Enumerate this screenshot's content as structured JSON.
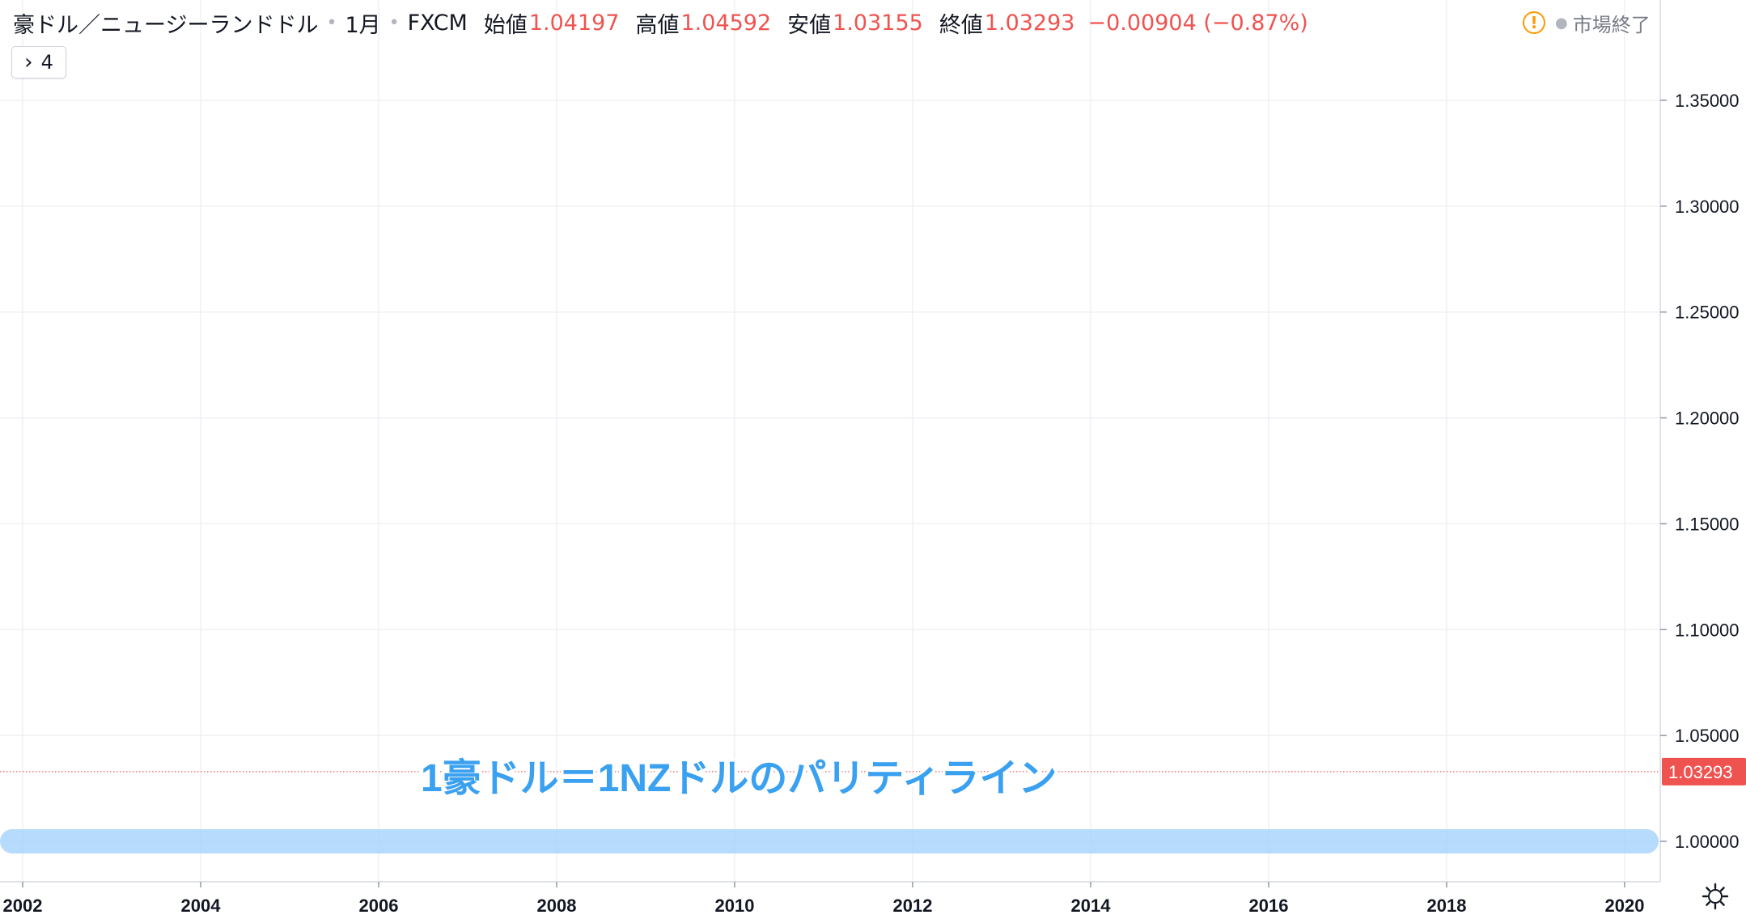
{
  "header": {
    "symbol": "豪ドル／ニュージーランドドル",
    "interval": "1月",
    "exchange": "FXCM",
    "ohlc": [
      {
        "label": "始値",
        "value": "1.04197"
      },
      {
        "label": "高値",
        "value": "1.04592"
      },
      {
        "label": "安値",
        "value": "1.03155"
      },
      {
        "label": "終値",
        "value": "1.03293"
      }
    ],
    "change": "−0.00904 (−0.87%)",
    "value_color": "#ef5350"
  },
  "indicators_toggle": {
    "icon": "chevron-right-icon",
    "count": "4"
  },
  "status": {
    "icon": "warning-icon",
    "text": "市場終了"
  },
  "settings": {
    "icon": "gear-icon"
  },
  "annotation": {
    "text": "1豪ドル＝1NZドルのパリティライン",
    "color": "#3aa0f0"
  },
  "chart_data": {
    "type": "candlestick",
    "interval": "1M",
    "xlim": [
      "2002-01",
      "2020-01"
    ],
    "ylim": [
      1.0,
      1.35
    ],
    "y_ticks": [
      "1.35000",
      "1.30000",
      "1.25000",
      "1.20000",
      "1.15000",
      "1.10000",
      "1.05000",
      "1.00000"
    ],
    "x_ticks": [
      "2002",
      "2004",
      "2006",
      "2008",
      "2010",
      "2012",
      "2014",
      "2016",
      "2018",
      "2020"
    ],
    "last_price": {
      "value": 1.03293,
      "label": "1.03293"
    },
    "parity_line": {
      "value": 1.0
    },
    "colors": {
      "up": "#53b987",
      "down": "#eb4d5c",
      "last_price": "#ef5350",
      "parity_band": "#a9d5fb"
    },
    "grid": true
  }
}
